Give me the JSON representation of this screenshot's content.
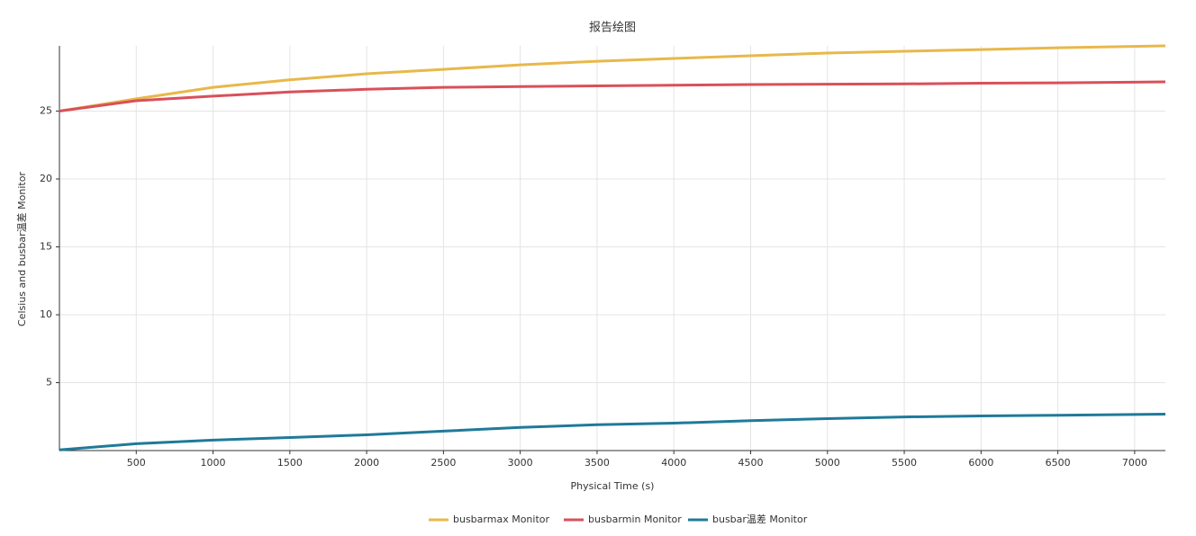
{
  "chart_data": {
    "type": "line",
    "title": "报告绘图",
    "x_label": "Physical Time (s)",
    "y_label": "Celsius and busbar温差 Monitor",
    "x": [
      0,
      500,
      1000,
      1500,
      2000,
      2500,
      3000,
      3500,
      4000,
      4500,
      5000,
      5500,
      6000,
      6500,
      7200
    ],
    "series": [
      {
        "name": "busbarmax Monitor",
        "color": "#e8b84a",
        "values": [
          25,
          25.9,
          26.75,
          27.3,
          27.75,
          28.07,
          28.4,
          28.67,
          28.87,
          29.07,
          29.27,
          29.4,
          29.53,
          29.66,
          29.8
        ]
      },
      {
        "name": "busbarmin Monitor",
        "color": "#d9505a",
        "values": [
          25,
          25.76,
          26.1,
          26.4,
          26.6,
          26.75,
          26.8,
          26.85,
          26.9,
          26.95,
          26.98,
          27.0,
          27.05,
          27.08,
          27.15
        ]
      },
      {
        "name": "busbar温差 Monitor",
        "color": "#1f7a99",
        "values": [
          0.05,
          0.5,
          0.77,
          0.96,
          1.16,
          1.43,
          1.7,
          1.9,
          2.02,
          2.2,
          2.35,
          2.48,
          2.55,
          2.6,
          2.68
        ]
      }
    ],
    "xlim": [
      0,
      7200
    ],
    "xticks": [
      500,
      1000,
      1500,
      2000,
      2500,
      3000,
      3500,
      4000,
      4500,
      5000,
      5500,
      6000,
      6500,
      7000
    ],
    "ylim": [
      0,
      29.8
    ],
    "yticks": [
      5,
      10,
      15,
      20,
      25
    ],
    "grid": true
  }
}
